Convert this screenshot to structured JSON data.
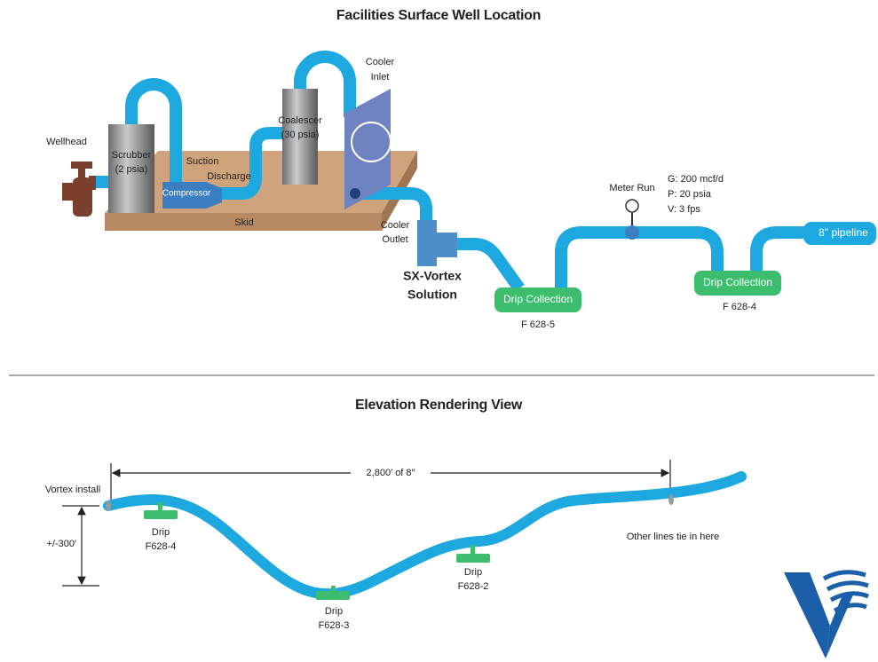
{
  "surface_view": {
    "title": "Facilities Surface Well Location",
    "wellhead": "Wellhead",
    "scrubber": [
      "Scrubber",
      "(2 psia)"
    ],
    "compressor": "Compressor",
    "suction": "Suction",
    "discharge": "Discharge",
    "coalescer": [
      "Coalescer",
      "(30 psia)"
    ],
    "cooler_inlet": [
      "Cooler",
      "Inlet"
    ],
    "skid": "Skid",
    "cooler_outlet": [
      "Cooler",
      "Outlet"
    ],
    "sx_vortex": [
      "SX-Vortex",
      "Solution"
    ],
    "drip_1": {
      "label": "Drip Collection",
      "id": "F 628-5"
    },
    "meter_run": "Meter Run",
    "conditions": [
      "G: 200 mcf/d",
      "P: 20 psia",
      "V: 3 fps"
    ],
    "drip_2": {
      "label": "Drip Collection",
      "id": "F 628-4"
    },
    "pipeline": "8\" pipeline"
  },
  "elevation_view": {
    "title": "Elevation Rendering View",
    "vortex_install": "Vortex install",
    "length": "2,800′ of 8″",
    "height": "+/-300′",
    "drips": [
      {
        "label": "Drip",
        "id": "F628-4"
      },
      {
        "label": "Drip",
        "id": "F628-3"
      },
      {
        "label": "Drip",
        "id": "F628-2"
      }
    ],
    "tie_in": "Other lines tie in here"
  }
}
